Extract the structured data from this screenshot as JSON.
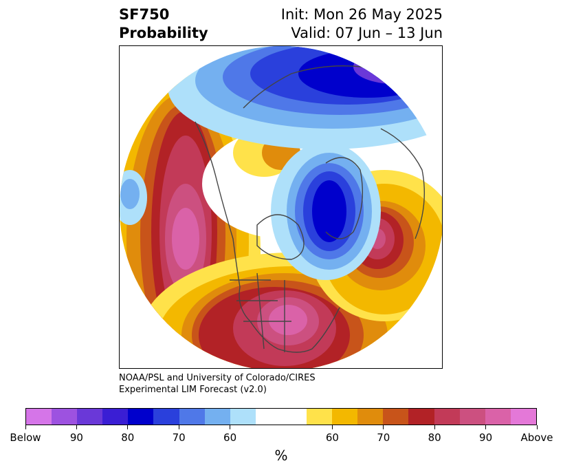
{
  "title": {
    "left_line1": "SF750",
    "left_line2": "Probability",
    "right_line1": "Init: Mon 26 May 2025",
    "right_line2": "Valid: 07 Jun – 13 Jun"
  },
  "credit": {
    "line1": "NOAA/PSL and University of Colorado/CIRES",
    "line2": "Experimental LIM Forecast (v2.0)"
  },
  "colorbar": {
    "colors": [
      "#d575e8",
      "#9d52e0",
      "#6a38d8",
      "#3a1ed4",
      "#0000cc",
      "#2a40dc",
      "#4f78e8",
      "#74b0f0",
      "#aee0fa",
      "#ffffff",
      "#ffffff",
      "#ffe24a",
      "#f3b800",
      "#e08c0c",
      "#c8541a",
      "#b22226",
      "#c23a58",
      "#cc5080",
      "#da62a8",
      "#e478d8"
    ],
    "tick_labels": [
      "Below",
      "90",
      "80",
      "70",
      "60",
      "60",
      "70",
      "80",
      "90",
      "Above"
    ],
    "unit": "%"
  },
  "map_colors": {
    "ocean_white": "#ffffff",
    "coast": "#444444"
  }
}
